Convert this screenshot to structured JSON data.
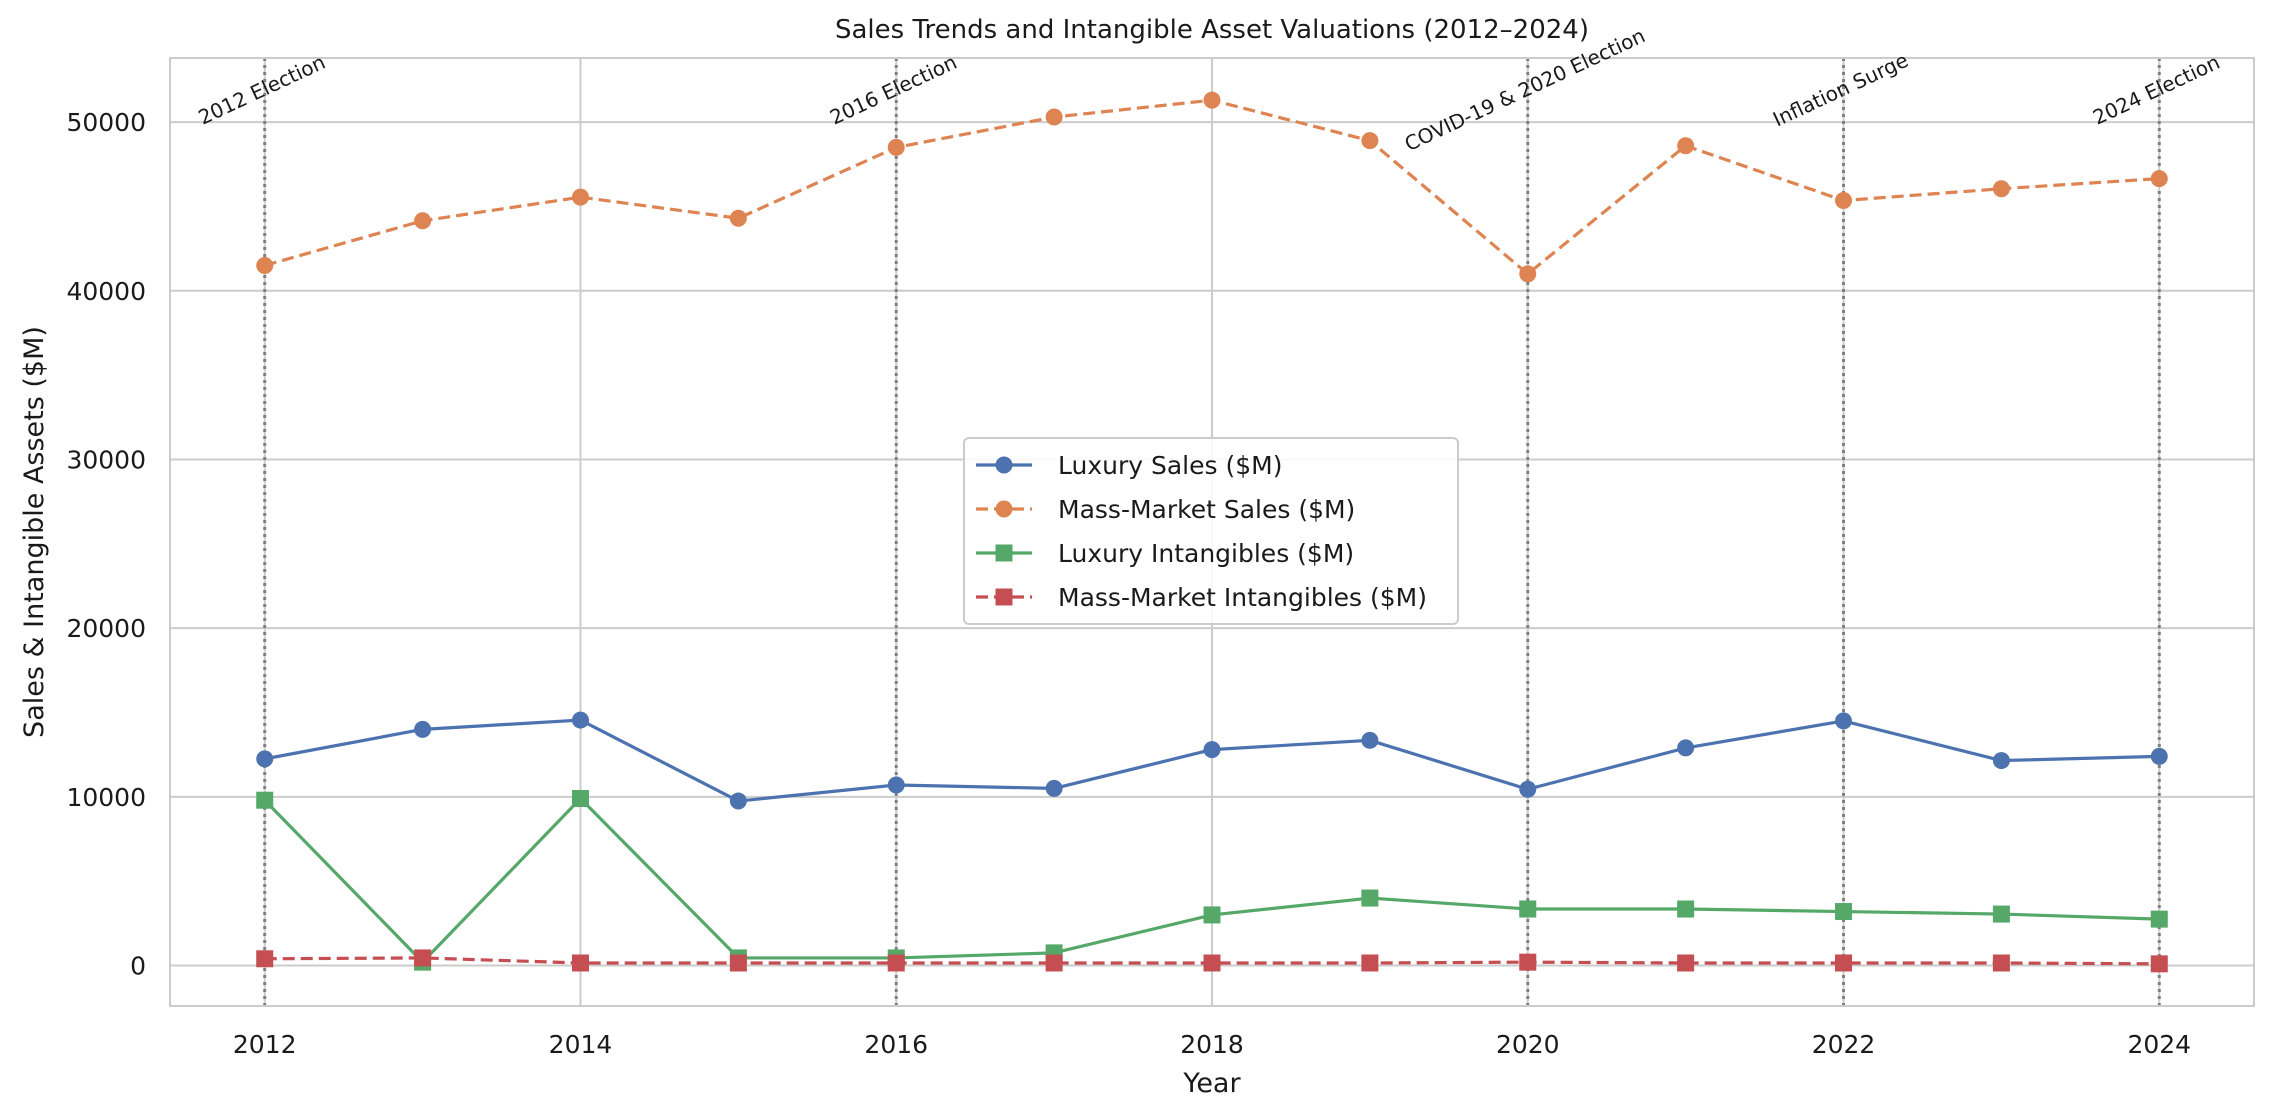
{
  "chart_data": {
    "type": "line",
    "title": "Sales Trends and Intangible Asset Valuations (2012–2024)",
    "xlabel": "Year",
    "ylabel": "Sales & Intangible Assets ($M)",
    "x": [
      2012,
      2013,
      2014,
      2015,
      2016,
      2017,
      2018,
      2019,
      2020,
      2021,
      2022,
      2023,
      2024
    ],
    "xlim": [
      2011.4,
      2024.6
    ],
    "ylim": [
      -2400,
      53800
    ],
    "xticks": [
      2012,
      2014,
      2016,
      2018,
      2020,
      2022,
      2024
    ],
    "yticks": [
      0,
      10000,
      20000,
      30000,
      40000,
      50000
    ],
    "grid": true,
    "legend_position": "center",
    "series": [
      {
        "name": "Luxury Sales ($M)",
        "color": "#4c72b0",
        "marker": "circle",
        "dashed": false,
        "values": [
          12250,
          14000,
          14550,
          9750,
          10700,
          10500,
          12800,
          13350,
          10450,
          12900,
          14500,
          12150,
          12400
        ]
      },
      {
        "name": "Mass-Market Sales ($M)",
        "color": "#dd8452",
        "marker": "circle",
        "dashed": true,
        "values": [
          41500,
          44150,
          45550,
          44300,
          48500,
          50300,
          51300,
          48900,
          41000,
          48600,
          45350,
          46050,
          46650
        ]
      },
      {
        "name": "Luxury Intangibles ($M)",
        "color": "#55a868",
        "marker": "square",
        "dashed": false,
        "values": [
          9800,
          200,
          9900,
          450,
          450,
          750,
          3000,
          4000,
          3350,
          3350,
          3200,
          3050,
          2750
        ]
      },
      {
        "name": "Mass-Market Intangibles ($M)",
        "color": "#c44e52",
        "marker": "square",
        "dashed": true,
        "values": [
          400,
          450,
          150,
          150,
          150,
          150,
          150,
          150,
          200,
          150,
          150,
          150,
          100
        ]
      }
    ],
    "events": [
      {
        "year": 2012,
        "label": "2012 Election"
      },
      {
        "year": 2016,
        "label": "2016 Election"
      },
      {
        "year": 2020,
        "label": "COVID-19 & 2020 Election"
      },
      {
        "year": 2022,
        "label": "Inflation Surge"
      },
      {
        "year": 2024,
        "label": "2024 Election"
      }
    ]
  }
}
